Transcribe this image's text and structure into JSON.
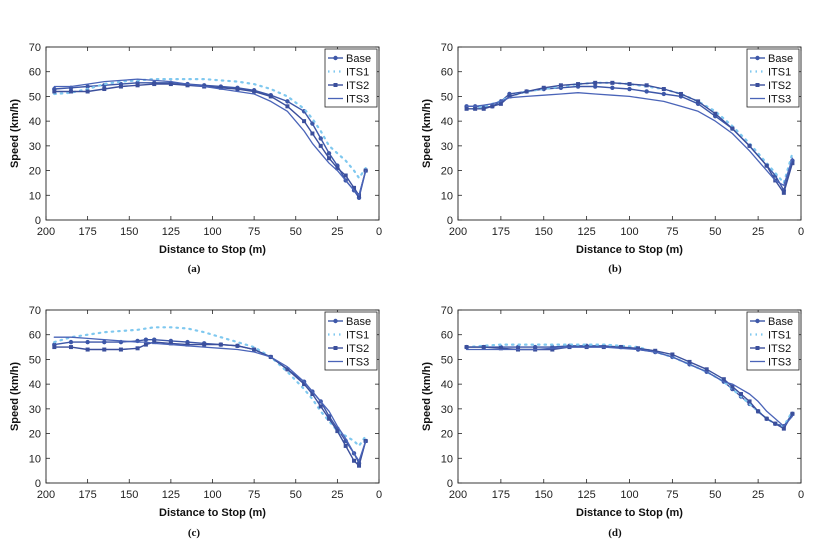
{
  "chart_data": [
    {
      "type": "line",
      "caption": "(a)",
      "xlabel": "Distance to Stop (m)",
      "ylabel": "Speed (km/h)",
      "xlim": [
        200,
        0
      ],
      "ylim": [
        0,
        70
      ],
      "xticks": [
        "200",
        "175",
        "150",
        "125",
        "100",
        "75",
        "50",
        "25",
        "0"
      ],
      "yticks": [
        "0",
        "10",
        "20",
        "30",
        "40",
        "50",
        "60",
        "70"
      ],
      "legend": "top-right",
      "series": [
        {
          "name": "Base",
          "x": [
            195,
            185,
            175,
            165,
            155,
            145,
            135,
            125,
            115,
            105,
            95,
            85,
            75,
            65,
            55,
            45,
            40,
            35,
            30,
            25,
            20,
            15,
            12,
            8
          ],
          "y": [
            53,
            53.5,
            54,
            54.5,
            55,
            55.5,
            55.5,
            55.5,
            55,
            54.5,
            54,
            53.5,
            52.5,
            50.5,
            48,
            44,
            39,
            33,
            27,
            22,
            16,
            12,
            9,
            20
          ]
        },
        {
          "name": "ITS1",
          "x": [
            195,
            185,
            175,
            165,
            155,
            145,
            135,
            125,
            115,
            105,
            95,
            85,
            75,
            65,
            55,
            45,
            40,
            35,
            30,
            25,
            20,
            15,
            12,
            8
          ],
          "y": [
            51,
            51.5,
            53,
            55,
            56,
            56.5,
            57,
            57,
            57,
            57,
            56.5,
            56,
            55,
            53,
            50,
            45,
            41,
            36,
            30,
            27,
            24,
            20,
            17,
            21
          ]
        },
        {
          "name": "ITS2",
          "x": [
            195,
            185,
            175,
            165,
            155,
            145,
            135,
            125,
            115,
            105,
            95,
            85,
            75,
            65,
            55,
            45,
            40,
            35,
            30,
            25,
            20,
            15,
            12,
            8
          ],
          "y": [
            52,
            52,
            52,
            53,
            54,
            54.5,
            55,
            55,
            54.5,
            54,
            53.5,
            53,
            52,
            50,
            46,
            40,
            35,
            30,
            25,
            21,
            18,
            13,
            10,
            20
          ]
        },
        {
          "name": "ITS3",
          "x": [
            195,
            185,
            175,
            165,
            155,
            145,
            135,
            125,
            115,
            105,
            95,
            85,
            75,
            65,
            55,
            45,
            40,
            35,
            30,
            25,
            20,
            15,
            12,
            8
          ],
          "y": [
            54,
            54,
            55,
            56,
            56.5,
            57,
            56.5,
            56,
            55,
            54,
            53,
            52,
            51,
            48,
            44,
            36,
            31,
            27,
            23,
            20,
            16,
            12,
            10,
            20
          ]
        }
      ]
    },
    {
      "type": "line",
      "caption": "(b)",
      "xlabel": "Distance to Stop (m)",
      "ylabel": "Speed (km/h)",
      "xlim": [
        200,
        0
      ],
      "ylim": [
        0,
        70
      ],
      "xticks": [
        "200",
        "175",
        "150",
        "125",
        "100",
        "75",
        "50",
        "25",
        "0"
      ],
      "yticks": [
        "0",
        "10",
        "20",
        "30",
        "40",
        "50",
        "60",
        "70"
      ],
      "legend": "top-right",
      "series": [
        {
          "name": "Base",
          "x": [
            195,
            190,
            185,
            180,
            175,
            170,
            160,
            150,
            140,
            130,
            120,
            110,
            100,
            90,
            80,
            70,
            60,
            50,
            40,
            30,
            20,
            15,
            10,
            5
          ],
          "y": [
            46,
            46,
            45.5,
            46,
            48,
            51,
            52,
            53,
            53.5,
            54,
            54,
            53.5,
            53,
            52,
            51,
            50,
            47,
            42,
            37,
            30,
            22,
            18,
            12,
            24
          ]
        },
        {
          "name": "ITS1",
          "x": [
            195,
            190,
            185,
            180,
            175,
            170,
            160,
            150,
            140,
            130,
            120,
            110,
            100,
            90,
            80,
            70,
            60,
            50,
            40,
            30,
            20,
            15,
            10,
            5
          ],
          "y": [
            45,
            45,
            46,
            47,
            48,
            50,
            52,
            53,
            54,
            55,
            55.5,
            55.5,
            55,
            54,
            53,
            51,
            48,
            44,
            38,
            31,
            23,
            19,
            15,
            27
          ]
        },
        {
          "name": "ITS2",
          "x": [
            195,
            190,
            185,
            180,
            175,
            170,
            160,
            150,
            140,
            130,
            120,
            110,
            100,
            90,
            80,
            70,
            60,
            50,
            40,
            30,
            20,
            15,
            10,
            5
          ],
          "y": [
            45,
            45,
            45,
            46,
            47,
            50,
            52,
            53.5,
            54.5,
            55,
            55.5,
            55.5,
            55,
            54.5,
            53,
            51,
            48,
            43,
            37,
            30,
            22,
            16,
            11,
            23
          ]
        },
        {
          "name": "ITS3",
          "x": [
            195,
            190,
            185,
            180,
            175,
            170,
            160,
            150,
            140,
            130,
            120,
            110,
            100,
            90,
            80,
            70,
            60,
            50,
            40,
            30,
            20,
            15,
            10,
            5
          ],
          "y": [
            46,
            46,
            46.5,
            47,
            48,
            49.5,
            50,
            50.5,
            51,
            51.5,
            51,
            50.5,
            50,
            49,
            48,
            46,
            44,
            40,
            35,
            28,
            20,
            16,
            14,
            25
          ]
        }
      ]
    },
    {
      "type": "line",
      "caption": "(c)",
      "xlabel": "Distance to Stop (m)",
      "ylabel": "Speed (km/h)",
      "xlim": [
        200,
        0
      ],
      "ylim": [
        0,
        70
      ],
      "xticks": [
        "200",
        "175",
        "150",
        "125",
        "100",
        "75",
        "50",
        "25",
        "0"
      ],
      "yticks": [
        "0",
        "10",
        "20",
        "30",
        "40",
        "50",
        "60",
        "70"
      ],
      "legend": "top-right",
      "series": [
        {
          "name": "Base",
          "x": [
            195,
            185,
            175,
            165,
            155,
            145,
            140,
            135,
            125,
            115,
            105,
            95,
            85,
            75,
            65,
            55,
            45,
            40,
            35,
            30,
            25,
            20,
            15,
            12,
            8
          ],
          "y": [
            56,
            57,
            57,
            57,
            57,
            57.5,
            58,
            58,
            57.5,
            57,
            56.5,
            56,
            55.5,
            54,
            51,
            46,
            41,
            37,
            33,
            27,
            22,
            17,
            12,
            8,
            17
          ]
        },
        {
          "name": "ITS1",
          "x": [
            195,
            185,
            175,
            165,
            155,
            145,
            140,
            135,
            125,
            115,
            105,
            95,
            85,
            75,
            65,
            55,
            45,
            40,
            35,
            30,
            25,
            20,
            15,
            12,
            8
          ],
          "y": [
            57,
            59,
            60,
            61,
            61.5,
            62,
            62.5,
            63,
            63,
            62.5,
            61,
            59,
            57,
            55,
            51,
            45,
            38,
            34,
            29,
            25,
            21,
            19,
            17,
            15,
            19
          ]
        },
        {
          "name": "ITS2",
          "x": [
            195,
            185,
            175,
            165,
            155,
            145,
            140,
            135,
            125,
            115,
            105,
            95,
            85,
            75,
            65,
            55,
            45,
            40,
            35,
            30,
            25,
            20,
            15,
            12,
            8
          ],
          "y": [
            55,
            55,
            54,
            54,
            54,
            54.5,
            56,
            57,
            56.5,
            56,
            56,
            56,
            55.5,
            54,
            51,
            46,
            40,
            36,
            31,
            26,
            21,
            15,
            9,
            7,
            17
          ]
        },
        {
          "name": "ITS3",
          "x": [
            195,
            185,
            175,
            165,
            155,
            145,
            140,
            135,
            125,
            115,
            105,
            95,
            85,
            75,
            65,
            55,
            45,
            40,
            35,
            30,
            25,
            20,
            15,
            12,
            8
          ],
          "y": [
            59,
            59,
            58.5,
            58,
            57.5,
            57,
            57,
            56.5,
            56,
            55.5,
            55,
            54.5,
            54,
            53,
            51,
            47,
            41,
            37,
            33,
            29,
            23,
            18,
            12,
            9,
            17
          ]
        }
      ]
    },
    {
      "type": "line",
      "caption": "(d)",
      "xlabel": "Distance to Stop (m)",
      "ylabel": "Speed (km/h)",
      "xlim": [
        200,
        0
      ],
      "ylim": [
        0,
        70
      ],
      "xticks": [
        "200",
        "175",
        "150",
        "125",
        "100",
        "75",
        "50",
        "25",
        "0"
      ],
      "yticks": [
        "0",
        "10",
        "20",
        "30",
        "40",
        "50",
        "60",
        "70"
      ],
      "legend": "top-right",
      "series": [
        {
          "name": "Base",
          "x": [
            195,
            185,
            175,
            165,
            155,
            145,
            135,
            125,
            115,
            105,
            95,
            85,
            75,
            65,
            55,
            45,
            40,
            35,
            30,
            25,
            20,
            15,
            10,
            5
          ],
          "y": [
            55,
            55,
            55,
            55,
            55,
            55,
            55.5,
            55.5,
            55.5,
            55,
            54,
            53,
            51,
            48,
            45,
            41,
            38,
            35,
            32,
            29,
            26,
            24,
            23,
            28
          ]
        },
        {
          "name": "ITS1",
          "x": [
            195,
            185,
            175,
            165,
            155,
            145,
            135,
            125,
            115,
            105,
            95,
            85,
            75,
            65,
            55,
            45,
            40,
            35,
            30,
            25,
            20,
            15,
            10,
            5
          ],
          "y": [
            55,
            55.5,
            56,
            56,
            56,
            56,
            56,
            56,
            56,
            55.5,
            55,
            53,
            51,
            48,
            45,
            41,
            38,
            35,
            32,
            29,
            26,
            24,
            23,
            29
          ]
        },
        {
          "name": "ITS2",
          "x": [
            195,
            185,
            175,
            165,
            155,
            145,
            135,
            125,
            115,
            105,
            95,
            85,
            75,
            65,
            55,
            45,
            40,
            35,
            30,
            25,
            20,
            15,
            10,
            5
          ],
          "y": [
            55,
            55,
            54.5,
            54,
            54,
            54,
            55,
            55,
            55,
            55,
            54.5,
            53.5,
            52,
            49,
            46,
            42,
            39,
            36,
            33,
            29,
            26,
            24,
            22,
            28
          ]
        },
        {
          "name": "ITS3",
          "x": [
            195,
            185,
            175,
            165,
            155,
            145,
            135,
            125,
            115,
            105,
            95,
            85,
            75,
            65,
            55,
            45,
            40,
            35,
            30,
            25,
            20,
            15,
            10,
            5
          ],
          "y": [
            54,
            54,
            54,
            54,
            54,
            54.5,
            55,
            55,
            55,
            54.5,
            54,
            53,
            51,
            48,
            45,
            41,
            40,
            38,
            36,
            33,
            29,
            26,
            23,
            27
          ]
        }
      ]
    }
  ]
}
